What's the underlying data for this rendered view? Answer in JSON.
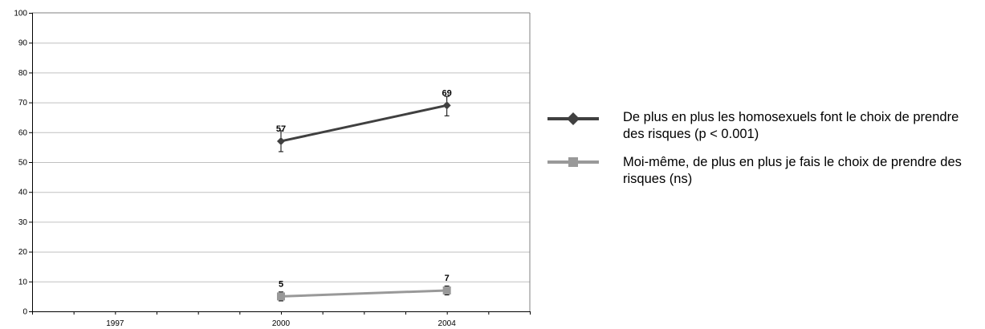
{
  "chart_data": {
    "type": "line",
    "categories": [
      "1997",
      "2000",
      "2004"
    ],
    "ylim": [
      0,
      100
    ],
    "yticks": [
      0,
      10,
      20,
      30,
      40,
      50,
      60,
      70,
      80,
      90,
      100
    ],
    "grid": true,
    "legend_position": "right",
    "series": [
      {
        "name": "De plus en plus les homosexuels font le choix de prendre des risques (p < 0.001)",
        "color": "#404040",
        "marker": "diamond",
        "values": [
          null,
          57,
          69
        ],
        "data_labels": [
          "",
          "57",
          "69"
        ],
        "error_low": [
          null,
          53.5,
          65.5
        ],
        "error_high": [
          null,
          60.5,
          72
        ]
      },
      {
        "name": "Moi-même, de plus en plus je fais le choix de prendre des risques (ns)",
        "color": "#999999",
        "marker": "square",
        "values": [
          null,
          5,
          7
        ],
        "data_labels": [
          "",
          "5",
          "7"
        ],
        "error_low": [
          null,
          3.5,
          5.5
        ],
        "error_high": [
          null,
          6.5,
          8.5
        ]
      }
    ]
  }
}
